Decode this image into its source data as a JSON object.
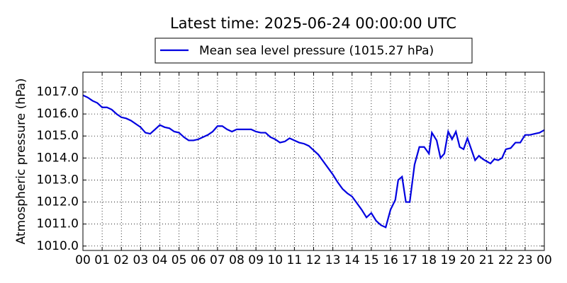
{
  "chart_data": {
    "type": "line",
    "title": "Latest time: 2025-06-24 00:00:00 UTC",
    "y_label": "Atmospheric pressure (hPa)",
    "legend": "top",
    "grid": true,
    "xlim": [
      0,
      24
    ],
    "ylim": [
      1009.8,
      1017.9
    ],
    "xticks": [
      {
        "value": 0,
        "label": "00"
      },
      {
        "value": 1,
        "label": "01"
      },
      {
        "value": 2,
        "label": "02"
      },
      {
        "value": 3,
        "label": "03"
      },
      {
        "value": 4,
        "label": "04"
      },
      {
        "value": 5,
        "label": "05"
      },
      {
        "value": 6,
        "label": "06"
      },
      {
        "value": 7,
        "label": "07"
      },
      {
        "value": 8,
        "label": "08"
      },
      {
        "value": 9,
        "label": "09"
      },
      {
        "value": 10,
        "label": "10"
      },
      {
        "value": 11,
        "label": "11"
      },
      {
        "value": 12,
        "label": "12"
      },
      {
        "value": 13,
        "label": "13"
      },
      {
        "value": 14,
        "label": "14"
      },
      {
        "value": 15,
        "label": "15"
      },
      {
        "value": 16,
        "label": "16"
      },
      {
        "value": 17,
        "label": "17"
      },
      {
        "value": 18,
        "label": "18"
      },
      {
        "value": 19,
        "label": "19"
      },
      {
        "value": 20,
        "label": "20"
      },
      {
        "value": 21,
        "label": "21"
      },
      {
        "value": 22,
        "label": "22"
      },
      {
        "value": 23,
        "label": "23"
      },
      {
        "value": 24,
        "label": "00"
      }
    ],
    "yticks": [
      {
        "value": 1010,
        "label": "1010.0"
      },
      {
        "value": 1011,
        "label": "1011.0"
      },
      {
        "value": 1012,
        "label": "1012.0"
      },
      {
        "value": 1013,
        "label": "1013.0"
      },
      {
        "value": 1014,
        "label": "1014.0"
      },
      {
        "value": 1015,
        "label": "1015.0"
      },
      {
        "value": 1016,
        "label": "1016.0"
      },
      {
        "value": 1017,
        "label": "1017.0"
      }
    ],
    "x": [
      0,
      0.25,
      0.5,
      0.75,
      1,
      1.25,
      1.5,
      1.75,
      2,
      2.25,
      2.5,
      2.75,
      3,
      3.25,
      3.5,
      3.75,
      4,
      4.25,
      4.5,
      4.75,
      5,
      5.25,
      5.5,
      5.75,
      6,
      6.25,
      6.5,
      6.75,
      7,
      7.25,
      7.5,
      7.75,
      8,
      8.25,
      8.5,
      8.75,
      9,
      9.25,
      9.5,
      9.75,
      10,
      10.25,
      10.5,
      10.75,
      11,
      11.25,
      11.5,
      11.75,
      12,
      12.25,
      12.5,
      12.75,
      13,
      13.25,
      13.5,
      13.75,
      14,
      14.25,
      14.5,
      14.75,
      15,
      15.25,
      15.5,
      15.75,
      16,
      16.25,
      16.4,
      16.6,
      16.8,
      17,
      17.25,
      17.5,
      17.75,
      18,
      18.15,
      18.4,
      18.6,
      18.8,
      19,
      19.2,
      19.4,
      19.6,
      19.8,
      20,
      20.2,
      20.4,
      20.6,
      20.8,
      21,
      21.2,
      21.4,
      21.6,
      21.8,
      22,
      22.25,
      22.5,
      22.75,
      23,
      23.25,
      23.5,
      23.75,
      24
    ],
    "series": [
      {
        "name": "Mean sea level pressure (1015.27 hPa)",
        "color": "#0000e0",
        "values": [
          1016.85,
          1016.75,
          1016.6,
          1016.5,
          1016.3,
          1016.3,
          1016.2,
          1016.0,
          1015.85,
          1015.8,
          1015.7,
          1015.55,
          1015.4,
          1015.15,
          1015.1,
          1015.3,
          1015.5,
          1015.4,
          1015.35,
          1015.2,
          1015.15,
          1014.95,
          1014.8,
          1014.8,
          1014.85,
          1014.95,
          1015.05,
          1015.2,
          1015.45,
          1015.45,
          1015.3,
          1015.2,
          1015.3,
          1015.3,
          1015.3,
          1015.3,
          1015.2,
          1015.15,
          1015.15,
          1014.95,
          1014.85,
          1014.7,
          1014.75,
          1014.9,
          1014.8,
          1014.7,
          1014.65,
          1014.55,
          1014.35,
          1014.15,
          1013.85,
          1013.55,
          1013.25,
          1012.9,
          1012.6,
          1012.4,
          1012.25,
          1011.95,
          1011.65,
          1011.3,
          1011.5,
          1011.15,
          1010.95,
          1010.85,
          1011.65,
          1012.1,
          1013.0,
          1013.15,
          1012.0,
          1012.0,
          1013.7,
          1014.5,
          1014.5,
          1014.2,
          1015.15,
          1014.8,
          1014.0,
          1014.2,
          1015.2,
          1014.85,
          1015.2,
          1014.5,
          1014.4,
          1014.9,
          1014.4,
          1013.9,
          1014.1,
          1013.95,
          1013.85,
          1013.75,
          1013.95,
          1013.9,
          1014.0,
          1014.4,
          1014.45,
          1014.7,
          1014.7,
          1015.05,
          1015.05,
          1015.1,
          1015.15,
          1015.27
        ]
      }
    ]
  }
}
